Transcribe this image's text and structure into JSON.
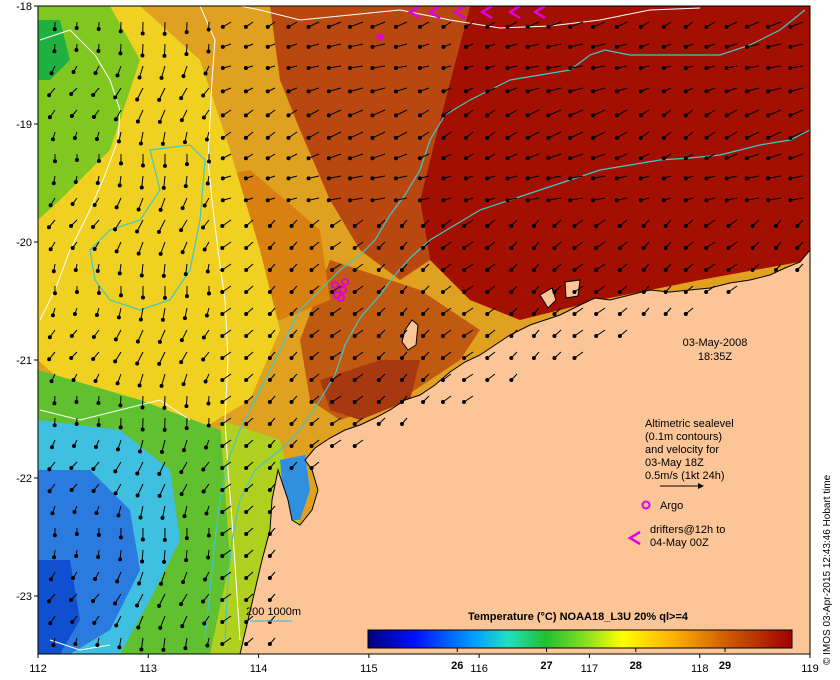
{
  "map": {
    "axes": {
      "lon_ticks": [
        "112",
        "113",
        "114",
        "115",
        "116",
        "117",
        "118",
        "119"
      ],
      "lat_ticks": [
        "-18",
        "-19",
        "-20",
        "-21",
        "-22",
        "-23"
      ]
    },
    "timestamp": {
      "date": "03-May-2008",
      "time": "18:35Z"
    },
    "legend": {
      "sealevel_lines": [
        "Altimetric sealevel",
        "(0.1m contours)",
        "and velocity for",
        "03-May 18Z",
        "0.5m/s (1kt 24h)"
      ],
      "argo_label": "Argo",
      "drifters_lines": [
        "drifters@12h to",
        "04-May 00Z"
      ],
      "isobath_label": "200  1000m"
    },
    "colorbar": {
      "title": "Temperature (°C) NOAA18_L3U 20% ql>=4",
      "tick_labels": [
        "26",
        "27",
        "28",
        "29"
      ],
      "range": [
        25.0,
        29.75
      ]
    },
    "credit": "© IMOS 03-Apr-2015 12:43:46 Hobart time",
    "colors": {
      "land": "#fbc597",
      "argo": "#e000e0",
      "isobath": "#40c8c8",
      "contour": "#ffffff"
    }
  }
}
